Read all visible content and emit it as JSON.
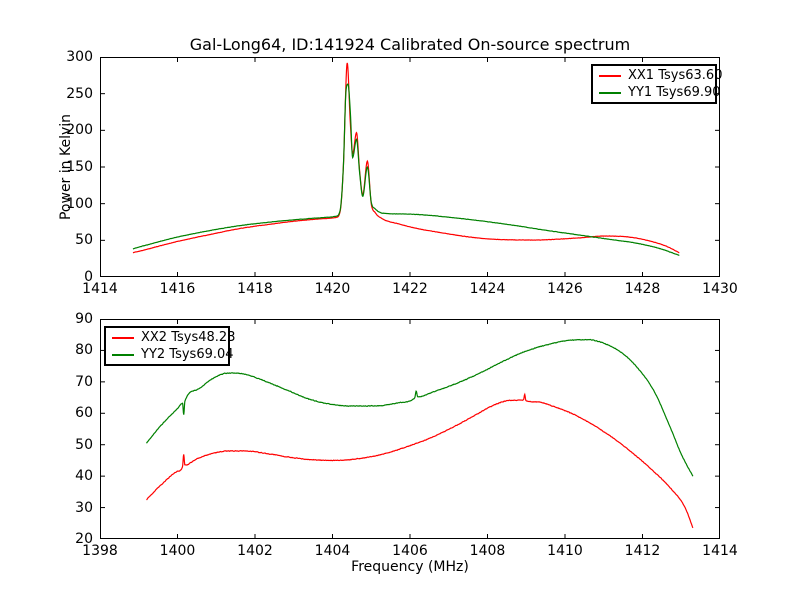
{
  "figure": {
    "title": "Gal-Long64, ID:141924 Calibrated On-source spectrum",
    "background": "#ffffff",
    "axes_color": "#000000"
  },
  "colors": {
    "red": "#ff0000",
    "green": "#008000"
  },
  "chart_data": [
    {
      "type": "line",
      "title": "Gal-Long64, ID:141924 Calibrated On-source spectrum",
      "xlabel": "",
      "ylabel": "Power in Kelvin",
      "xlim": [
        1414,
        1430
      ],
      "ylim": [
        0,
        300
      ],
      "xticks": [
        1414,
        1416,
        1418,
        1420,
        1422,
        1424,
        1426,
        1428,
        1430
      ],
      "yticks": [
        0,
        50,
        100,
        150,
        200,
        250,
        300
      ],
      "grid": false,
      "legend": {
        "position": "upper right",
        "entries": [
          {
            "label": "XX1 Tsys63.60",
            "color": "#ff0000"
          },
          {
            "label": "YY1 Tsys69.90",
            "color": "#008000"
          }
        ]
      },
      "series": [
        {
          "name": "XX1",
          "color": "#ff0000",
          "noise": 0.7,
          "keypoints": [
            [
              1414.85,
              33
            ],
            [
              1415.3,
              39
            ],
            [
              1416.0,
              48.5
            ],
            [
              1416.8,
              57.5
            ],
            [
              1417.6,
              66
            ],
            [
              1418.4,
              72
            ],
            [
              1419.0,
              76
            ],
            [
              1419.5,
              78.5
            ],
            [
              1419.9,
              80
            ],
            [
              1420.1,
              81.5
            ],
            [
              1420.2,
              90
            ],
            [
              1420.28,
              150
            ],
            [
              1420.38,
              292
            ],
            [
              1420.46,
              210
            ],
            [
              1420.52,
              168
            ],
            [
              1420.62,
              197
            ],
            [
              1420.7,
              145
            ],
            [
              1420.78,
              112
            ],
            [
              1420.9,
              158
            ],
            [
              1421.0,
              100
            ],
            [
              1421.1,
              88
            ],
            [
              1421.3,
              79
            ],
            [
              1421.7,
              72.5
            ],
            [
              1422.2,
              66
            ],
            [
              1422.8,
              60.5
            ],
            [
              1423.4,
              55.5
            ],
            [
              1424.0,
              52
            ],
            [
              1424.6,
              50.7
            ],
            [
              1425.2,
              50.4
            ],
            [
              1425.8,
              51.5
            ],
            [
              1426.4,
              53.5
            ],
            [
              1427.0,
              55.8
            ],
            [
              1427.4,
              55.5
            ],
            [
              1427.9,
              52.5
            ],
            [
              1428.4,
              46
            ],
            [
              1428.7,
              40
            ],
            [
              1428.95,
              33
            ]
          ]
        },
        {
          "name": "YY1",
          "color": "#008000",
          "noise": 0.7,
          "keypoints": [
            [
              1414.85,
              38.5
            ],
            [
              1415.3,
              45
            ],
            [
              1416.0,
              54.5
            ],
            [
              1416.8,
              63
            ],
            [
              1417.6,
              70
            ],
            [
              1418.4,
              75
            ],
            [
              1419.0,
              78
            ],
            [
              1419.5,
              80
            ],
            [
              1419.9,
              81.5
            ],
            [
              1420.1,
              83
            ],
            [
              1420.2,
              92
            ],
            [
              1420.28,
              150
            ],
            [
              1420.35,
              255
            ],
            [
              1420.4,
              263
            ],
            [
              1420.46,
              225
            ],
            [
              1420.52,
              163
            ],
            [
              1420.62,
              188
            ],
            [
              1420.7,
              142
            ],
            [
              1420.78,
              110
            ],
            [
              1420.9,
              150
            ],
            [
              1421.0,
              102
            ],
            [
              1421.1,
              93
            ],
            [
              1421.3,
              87
            ],
            [
              1421.8,
              86
            ],
            [
              1422.4,
              84.5
            ],
            [
              1423.0,
              81.5
            ],
            [
              1423.6,
              78
            ],
            [
              1424.2,
              74
            ],
            [
              1424.8,
              69.5
            ],
            [
              1425.4,
              64.5
            ],
            [
              1426.0,
              60
            ],
            [
              1426.6,
              55.5
            ],
            [
              1427.2,
              51
            ],
            [
              1427.8,
              46.5
            ],
            [
              1428.4,
              39.5
            ],
            [
              1428.95,
              29.5
            ]
          ]
        }
      ]
    },
    {
      "type": "line",
      "title": "",
      "xlabel": "Frequency (MHz)",
      "ylabel": "",
      "xlim": [
        1398,
        1414
      ],
      "ylim": [
        20,
        90
      ],
      "xticks": [
        1398,
        1400,
        1402,
        1404,
        1406,
        1408,
        1410,
        1412,
        1414
      ],
      "yticks": [
        20,
        30,
        40,
        50,
        60,
        70,
        80,
        90
      ],
      "grid": false,
      "legend": {
        "position": "upper left",
        "entries": [
          {
            "label": "XX2 Tsys48.23",
            "color": "#ff0000"
          },
          {
            "label": "YY2 Tsys69.04",
            "color": "#008000"
          }
        ]
      },
      "series": [
        {
          "name": "XX2",
          "color": "#ff0000",
          "noise": 0.3,
          "keypoints": [
            [
              1399.2,
              32.5
            ],
            [
              1399.6,
              37.5
            ],
            [
              1400.0,
              41.5
            ],
            [
              1400.13,
              43
            ],
            [
              1400.16,
              47
            ],
            [
              1400.19,
              43.5
            ],
            [
              1400.5,
              45.5
            ],
            [
              1400.9,
              47.2
            ],
            [
              1401.3,
              48
            ],
            [
              1401.8,
              48
            ],
            [
              1402.3,
              47.2
            ],
            [
              1402.9,
              46
            ],
            [
              1403.5,
              45.2
            ],
            [
              1404.1,
              45
            ],
            [
              1404.7,
              45.6
            ],
            [
              1405.3,
              47
            ],
            [
              1405.9,
              49.3
            ],
            [
              1406.5,
              52
            ],
            [
              1407.1,
              55.5
            ],
            [
              1407.7,
              59.5
            ],
            [
              1408.2,
              62.8
            ],
            [
              1408.6,
              64.1
            ],
            [
              1408.93,
              64.2
            ],
            [
              1408.96,
              66
            ],
            [
              1408.99,
              64.1
            ],
            [
              1409.3,
              63.6
            ],
            [
              1409.7,
              62.2
            ],
            [
              1410.2,
              59.8
            ],
            [
              1410.7,
              56.5
            ],
            [
              1411.2,
              52.5
            ],
            [
              1411.7,
              47.8
            ],
            [
              1412.2,
              42.5
            ],
            [
              1412.7,
              36.5
            ],
            [
              1413.1,
              30
            ],
            [
              1413.3,
              23.5
            ]
          ]
        },
        {
          "name": "YY2",
          "color": "#008000",
          "noise": 0.3,
          "keypoints": [
            [
              1399.2,
              50.5
            ],
            [
              1399.6,
              56.5
            ],
            [
              1400.0,
              61.5
            ],
            [
              1400.13,
              63.2
            ],
            [
              1400.16,
              59.5
            ],
            [
              1400.19,
              63.8
            ],
            [
              1400.5,
              67.5
            ],
            [
              1400.9,
              71
            ],
            [
              1401.3,
              72.8
            ],
            [
              1401.7,
              72.5
            ],
            [
              1402.2,
              70.5
            ],
            [
              1402.8,
              67.5
            ],
            [
              1403.4,
              64.5
            ],
            [
              1404.0,
              62.8
            ],
            [
              1404.6,
              62.3
            ],
            [
              1405.2,
              62.4
            ],
            [
              1405.8,
              63.5
            ],
            [
              1406.12,
              64.9
            ],
            [
              1406.16,
              67
            ],
            [
              1406.2,
              65.2
            ],
            [
              1406.6,
              66.8
            ],
            [
              1407.2,
              69.5
            ],
            [
              1407.8,
              72.8
            ],
            [
              1408.4,
              76.5
            ],
            [
              1409.0,
              79.8
            ],
            [
              1409.6,
              82
            ],
            [
              1410.1,
              83.2
            ],
            [
              1410.6,
              83.4
            ],
            [
              1411.0,
              82.3
            ],
            [
              1411.4,
              79.8
            ],
            [
              1411.8,
              75.5
            ],
            [
              1412.3,
              67
            ],
            [
              1412.7,
              56
            ],
            [
              1413.0,
              47
            ],
            [
              1413.3,
              40
            ]
          ]
        }
      ]
    }
  ]
}
